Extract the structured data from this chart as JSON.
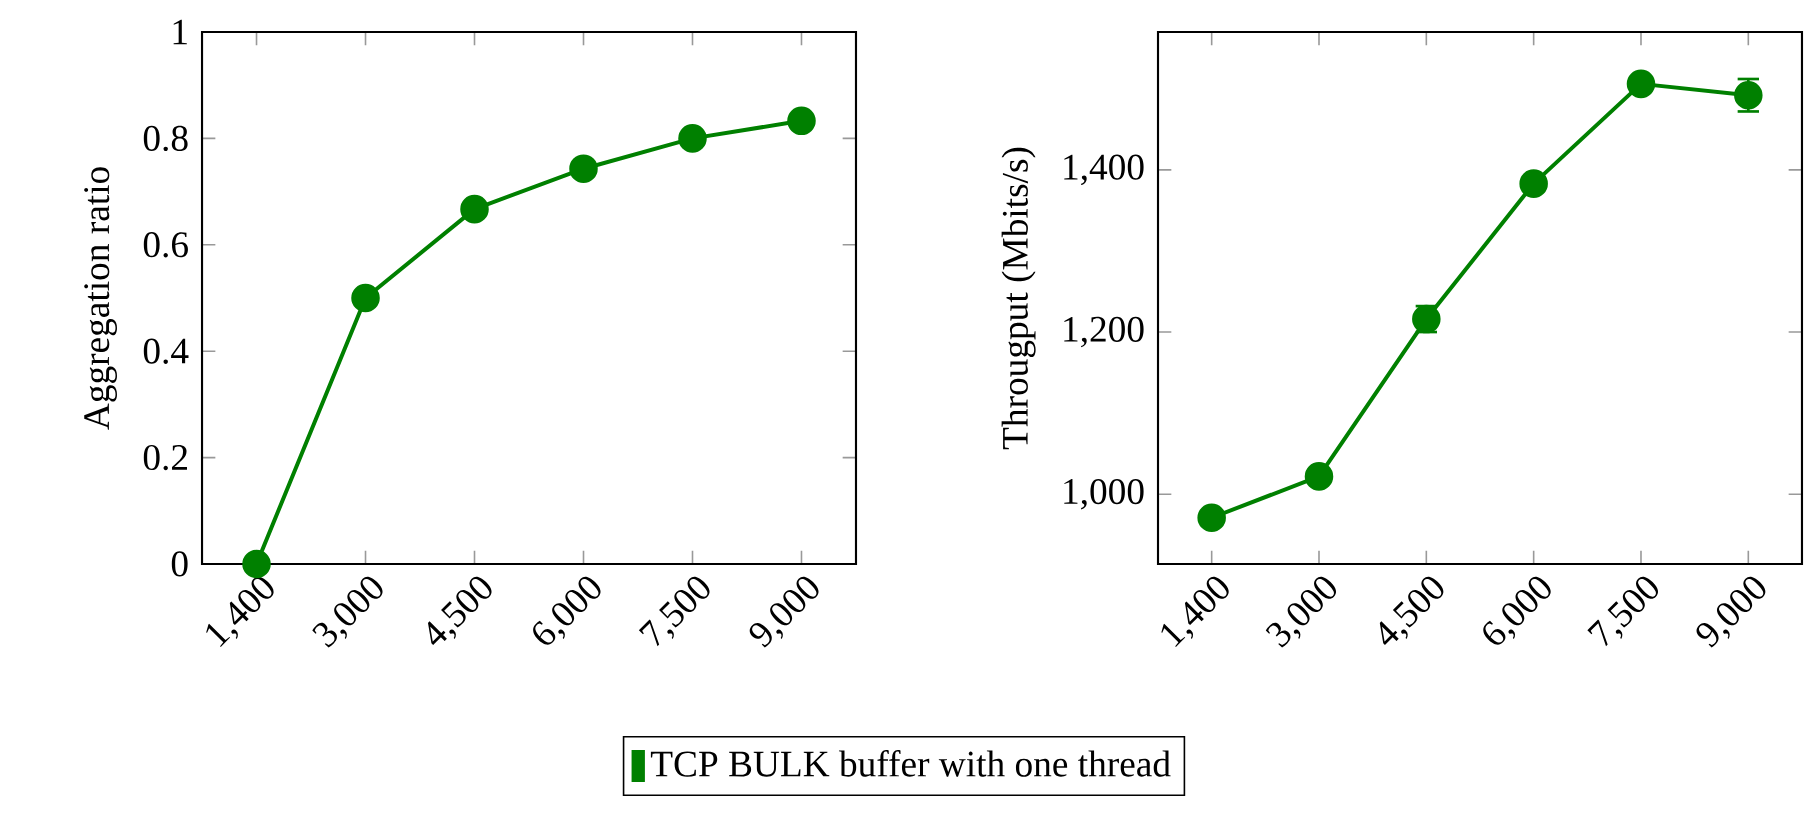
{
  "chart_data": [
    {
      "type": "line",
      "ylabel": "Aggregation ratio",
      "categories": [
        "1,400",
        "3,000",
        "4,500",
        "6,000",
        "7,500",
        "9,000"
      ],
      "series": [
        {
          "name": "TCP BULK buffer with one thread",
          "color": "#008000",
          "values": [
            0,
            0.5,
            0.667,
            0.743,
            0.8,
            0.833
          ]
        }
      ],
      "ylim": [
        0,
        1
      ],
      "yticks": [
        0,
        0.2,
        0.4,
        0.6,
        0.8,
        1
      ],
      "marker": "circle",
      "legend": "bottom"
    },
    {
      "type": "line",
      "ylabel": "Througput (Mbits/s)",
      "categories": [
        "1,400",
        "3,000",
        "4,500",
        "6,000",
        "7,500",
        "9,000"
      ],
      "series": [
        {
          "color": "#008000",
          "values": [
            971,
            1022,
            1216,
            1383,
            1506,
            1492
          ],
          "errors": [
            null,
            null,
            16,
            null,
            null,
            20
          ]
        }
      ],
      "ylim": [
        914,
        1570
      ],
      "yticks": [
        {
          "value": 1000,
          "label": "1,000"
        },
        {
          "value": 1200,
          "label": "1,200"
        },
        {
          "value": 1400,
          "label": "1,400"
        }
      ],
      "marker": "circle"
    }
  ]
}
